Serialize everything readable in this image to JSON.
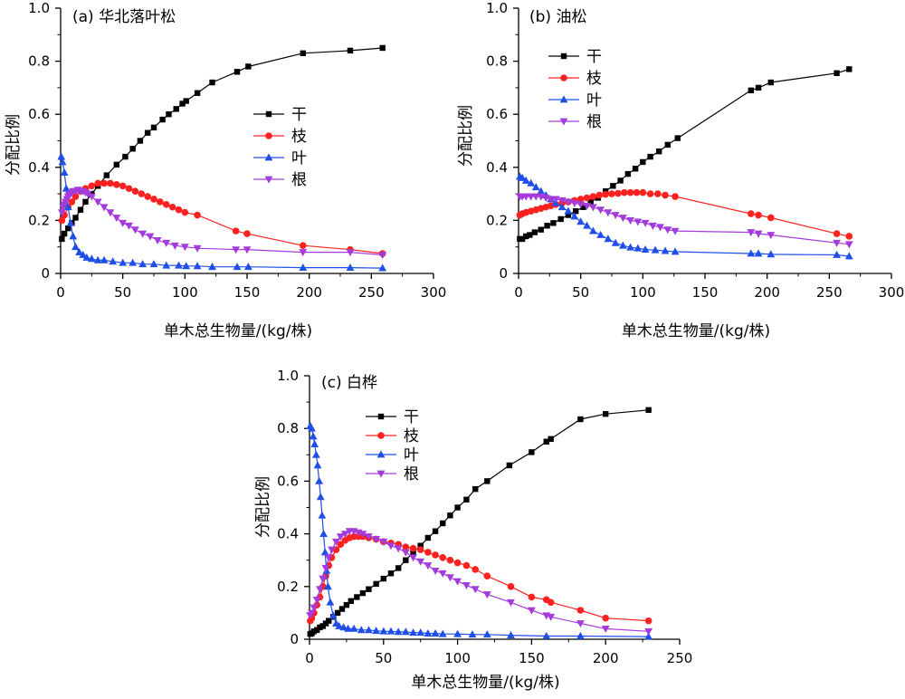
{
  "chart_data": [
    {
      "type": "line",
      "title": "(a) 华北落叶松",
      "xlabel": "单木总生物量/(kg/株)",
      "ylabel": "分配比例",
      "xlim": [
        0,
        300
      ],
      "ylim": [
        0,
        1.0
      ],
      "xticks": [
        0,
        50,
        100,
        150,
        200,
        250,
        300
      ],
      "yticks": [
        0,
        0.2,
        0.4,
        0.6,
        0.8,
        1.0
      ],
      "ytick_labels": [
        "0",
        "0.2",
        "0.4",
        "0.6",
        "0.8",
        "1.0"
      ],
      "grid": false,
      "legend": "center-right",
      "series": [
        {
          "name": "干",
          "color": "#000000",
          "marker": "square",
          "x": [
            1,
            3,
            6,
            9,
            12,
            16,
            20,
            25,
            30,
            37,
            45,
            52,
            58,
            64,
            70,
            75,
            82,
            87,
            93,
            98,
            101,
            110,
            122,
            142,
            151,
            195,
            233,
            259
          ],
          "y": [
            0.13,
            0.15,
            0.17,
            0.19,
            0.21,
            0.24,
            0.27,
            0.3,
            0.33,
            0.37,
            0.41,
            0.44,
            0.47,
            0.5,
            0.53,
            0.55,
            0.58,
            0.6,
            0.62,
            0.64,
            0.65,
            0.68,
            0.72,
            0.76,
            0.78,
            0.83,
            0.84,
            0.85
          ]
        },
        {
          "name": "枝",
          "color": "#ff2020",
          "marker": "circle",
          "x": [
            1,
            3,
            6,
            9,
            12,
            16,
            20,
            25,
            30,
            35,
            40,
            45,
            50,
            55,
            60,
            65,
            70,
            75,
            80,
            85,
            90,
            95,
            100,
            110,
            141,
            150,
            195,
            233,
            259
          ],
          "y": [
            0.2,
            0.22,
            0.25,
            0.27,
            0.29,
            0.31,
            0.32,
            0.33,
            0.34,
            0.34,
            0.34,
            0.335,
            0.33,
            0.32,
            0.31,
            0.3,
            0.29,
            0.28,
            0.27,
            0.26,
            0.25,
            0.24,
            0.23,
            0.22,
            0.16,
            0.15,
            0.105,
            0.09,
            0.075
          ]
        },
        {
          "name": "叶",
          "color": "#1f4fe8",
          "marker": "triangle-up",
          "x": [
            0.5,
            1.5,
            3,
            4.5,
            6,
            8,
            10,
            12,
            15,
            18,
            21,
            25,
            30,
            35,
            42,
            50,
            58,
            66,
            75,
            85,
            95,
            101,
            110,
            122,
            142,
            151,
            195,
            233,
            259
          ],
          "y": [
            0.44,
            0.42,
            0.38,
            0.32,
            0.25,
            0.19,
            0.14,
            0.1,
            0.08,
            0.07,
            0.06,
            0.055,
            0.05,
            0.05,
            0.045,
            0.04,
            0.04,
            0.035,
            0.035,
            0.03,
            0.03,
            0.028,
            0.028,
            0.025,
            0.025,
            0.025,
            0.022,
            0.022,
            0.02
          ]
        },
        {
          "name": "根",
          "color": "#a43bdc",
          "marker": "triangle-down",
          "x": [
            1,
            2,
            3,
            4,
            5,
            6,
            7,
            8,
            9,
            10,
            12,
            14,
            16,
            18,
            20,
            22,
            25,
            30,
            35,
            40,
            45,
            50,
            55,
            60,
            66,
            72,
            78,
            85,
            92,
            100,
            110,
            141,
            150,
            195,
            233,
            259
          ],
          "y": [
            0.23,
            0.25,
            0.26,
            0.27,
            0.28,
            0.29,
            0.295,
            0.3,
            0.305,
            0.31,
            0.31,
            0.315,
            0.31,
            0.31,
            0.305,
            0.3,
            0.29,
            0.27,
            0.25,
            0.23,
            0.21,
            0.19,
            0.18,
            0.165,
            0.15,
            0.14,
            0.125,
            0.115,
            0.105,
            0.1,
            0.095,
            0.09,
            0.09,
            0.08,
            0.08,
            0.07
          ]
        }
      ]
    },
    {
      "type": "line",
      "title": "(b) 油松",
      "xlabel": "单木总生物量/(kg/株)",
      "ylabel": "分配比例",
      "xlim": [
        0,
        300
      ],
      "ylim": [
        0,
        1.0
      ],
      "xticks": [
        0,
        50,
        100,
        150,
        200,
        250,
        300
      ],
      "yticks": [
        0,
        0.2,
        0.4,
        0.6,
        0.8,
        1.0
      ],
      "ytick_labels": [
        "0",
        "0.2",
        "0.4",
        "0.6",
        "0.8",
        "1.0"
      ],
      "grid": false,
      "legend": "top-left",
      "series": [
        {
          "name": "干",
          "color": "#000000",
          "marker": "square",
          "x": [
            1,
            3,
            6,
            9,
            13,
            18,
            23,
            28,
            34,
            40,
            46,
            52,
            58,
            64,
            70,
            76,
            82,
            88,
            94,
            100,
            106,
            113,
            120,
            128,
            187,
            193,
            203,
            256,
            266
          ],
          "y": [
            0.13,
            0.13,
            0.14,
            0.145,
            0.155,
            0.165,
            0.18,
            0.19,
            0.205,
            0.22,
            0.235,
            0.25,
            0.27,
            0.285,
            0.31,
            0.33,
            0.35,
            0.375,
            0.395,
            0.42,
            0.44,
            0.46,
            0.485,
            0.51,
            0.69,
            0.7,
            0.72,
            0.755,
            0.77
          ]
        },
        {
          "name": "枝",
          "color": "#ff2020",
          "marker": "circle",
          "x": [
            1,
            3,
            6,
            10,
            14,
            18,
            22,
            26,
            30,
            35,
            40,
            45,
            50,
            55,
            60,
            65,
            70,
            75,
            80,
            85,
            90,
            95,
            100,
            106,
            112,
            118,
            126,
            187,
            193,
            203,
            256,
            266
          ],
          "y": [
            0.22,
            0.225,
            0.23,
            0.235,
            0.24,
            0.245,
            0.25,
            0.255,
            0.26,
            0.265,
            0.27,
            0.275,
            0.28,
            0.285,
            0.29,
            0.295,
            0.298,
            0.3,
            0.302,
            0.305,
            0.305,
            0.305,
            0.305,
            0.3,
            0.3,
            0.295,
            0.29,
            0.225,
            0.22,
            0.21,
            0.15,
            0.14
          ]
        },
        {
          "name": "叶",
          "color": "#1f4fe8",
          "marker": "triangle-up",
          "x": [
            1,
            3,
            6,
            10,
            14,
            18,
            22,
            26,
            30,
            35,
            40,
            45,
            50,
            55,
            60,
            66,
            72,
            78,
            84,
            90,
            96,
            102,
            110,
            118,
            126,
            187,
            193,
            203,
            256,
            266
          ],
          "y": [
            0.365,
            0.36,
            0.35,
            0.34,
            0.325,
            0.31,
            0.295,
            0.28,
            0.265,
            0.25,
            0.235,
            0.215,
            0.195,
            0.18,
            0.16,
            0.145,
            0.13,
            0.115,
            0.105,
            0.098,
            0.095,
            0.09,
            0.088,
            0.085,
            0.082,
            0.075,
            0.075,
            0.072,
            0.07,
            0.065
          ]
        },
        {
          "name": "根",
          "color": "#a43bdc",
          "marker": "triangle-down",
          "x": [
            1,
            3,
            6,
            10,
            14,
            18,
            22,
            26,
            30,
            35,
            40,
            45,
            50,
            55,
            60,
            66,
            72,
            78,
            84,
            90,
            96,
            102,
            108,
            114,
            120,
            126,
            187,
            193,
            203,
            256,
            266
          ],
          "y": [
            0.29,
            0.29,
            0.29,
            0.29,
            0.29,
            0.29,
            0.285,
            0.28,
            0.28,
            0.275,
            0.27,
            0.265,
            0.26,
            0.255,
            0.25,
            0.24,
            0.23,
            0.22,
            0.21,
            0.2,
            0.195,
            0.19,
            0.18,
            0.175,
            0.165,
            0.16,
            0.155,
            0.15,
            0.145,
            0.115,
            0.11
          ]
        }
      ]
    },
    {
      "type": "line",
      "title": "(c) 白桦",
      "xlabel": "单木总生物量/(kg/株)",
      "ylabel": "分配比例",
      "xlim": [
        0,
        250
      ],
      "ylim": [
        0,
        1.0
      ],
      "xticks": [
        0,
        50,
        100,
        150,
        200,
        250
      ],
      "yticks": [
        0,
        0.2,
        0.4,
        0.6,
        0.8,
        1.0
      ],
      "ytick_labels": [
        "0",
        "0.2",
        "0.4",
        "0.6",
        "0.8",
        "1.0"
      ],
      "grid": false,
      "legend": "top-center",
      "series": [
        {
          "name": "干",
          "color": "#000000",
          "marker": "square",
          "x": [
            0.5,
            1.5,
            3,
            5,
            7,
            9,
            11,
            13,
            16,
            19,
            22,
            25,
            28,
            32,
            36,
            40,
            45,
            50,
            55,
            60,
            65,
            70,
            75,
            80,
            85,
            90,
            95,
            100,
            106,
            112,
            120,
            135,
            150,
            160,
            163,
            183,
            200,
            229
          ],
          "y": [
            0.02,
            0.022,
            0.03,
            0.035,
            0.045,
            0.05,
            0.06,
            0.07,
            0.085,
            0.1,
            0.115,
            0.13,
            0.145,
            0.16,
            0.175,
            0.19,
            0.21,
            0.23,
            0.25,
            0.27,
            0.3,
            0.33,
            0.355,
            0.385,
            0.41,
            0.44,
            0.47,
            0.5,
            0.53,
            0.57,
            0.6,
            0.66,
            0.71,
            0.75,
            0.76,
            0.835,
            0.855,
            0.87
          ]
        },
        {
          "name": "枝",
          "color": "#ff2020",
          "marker": "circle",
          "x": [
            0.5,
            1.5,
            3,
            5,
            7,
            9,
            11,
            13,
            15,
            18,
            21,
            24,
            27,
            30,
            33,
            36,
            40,
            45,
            50,
            55,
            60,
            65,
            70,
            75,
            80,
            85,
            90,
            95,
            100,
            106,
            112,
            120,
            136,
            150,
            160,
            163,
            183,
            200,
            229
          ],
          "y": [
            0.07,
            0.08,
            0.1,
            0.13,
            0.16,
            0.2,
            0.24,
            0.28,
            0.31,
            0.34,
            0.36,
            0.375,
            0.385,
            0.39,
            0.39,
            0.39,
            0.385,
            0.38,
            0.37,
            0.365,
            0.36,
            0.35,
            0.345,
            0.34,
            0.33,
            0.32,
            0.31,
            0.3,
            0.29,
            0.28,
            0.265,
            0.24,
            0.2,
            0.16,
            0.15,
            0.14,
            0.11,
            0.08,
            0.07
          ]
        },
        {
          "name": "叶",
          "color": "#1f4fe8",
          "marker": "triangle-up",
          "x": [
            0.5,
            1.5,
            2.5,
            3.5,
            4.5,
            5.5,
            6.5,
            7.5,
            8.5,
            9.5,
            10.5,
            11.5,
            12.5,
            14,
            16,
            18,
            20,
            23,
            26,
            30,
            35,
            40,
            45,
            50,
            55,
            60,
            65,
            70,
            75,
            80,
            85,
            90,
            100,
            110,
            120,
            136,
            160,
            183,
            229
          ],
          "y": [
            0.81,
            0.8,
            0.77,
            0.74,
            0.7,
            0.66,
            0.6,
            0.54,
            0.47,
            0.4,
            0.33,
            0.26,
            0.2,
            0.14,
            0.09,
            0.06,
            0.05,
            0.045,
            0.04,
            0.04,
            0.035,
            0.035,
            0.032,
            0.03,
            0.03,
            0.028,
            0.028,
            0.025,
            0.025,
            0.022,
            0.022,
            0.02,
            0.02,
            0.018,
            0.018,
            0.015,
            0.012,
            0.012,
            0.01
          ]
        },
        {
          "name": "根",
          "color": "#a43bdc",
          "marker": "triangle-down",
          "x": [
            0.5,
            1.5,
            3,
            5,
            7,
            9,
            11,
            13,
            15,
            18,
            21,
            24,
            27,
            30,
            33,
            36,
            40,
            45,
            50,
            55,
            60,
            65,
            70,
            75,
            80,
            85,
            90,
            95,
            100,
            106,
            112,
            120,
            136,
            150,
            160,
            163,
            183,
            200,
            229
          ],
          "y": [
            0.09,
            0.1,
            0.12,
            0.15,
            0.19,
            0.23,
            0.27,
            0.31,
            0.34,
            0.37,
            0.39,
            0.4,
            0.41,
            0.41,
            0.405,
            0.4,
            0.39,
            0.38,
            0.37,
            0.355,
            0.345,
            0.33,
            0.31,
            0.295,
            0.28,
            0.26,
            0.25,
            0.235,
            0.22,
            0.205,
            0.19,
            0.17,
            0.14,
            0.11,
            0.09,
            0.085,
            0.06,
            0.04,
            0.03
          ]
        }
      ]
    }
  ]
}
